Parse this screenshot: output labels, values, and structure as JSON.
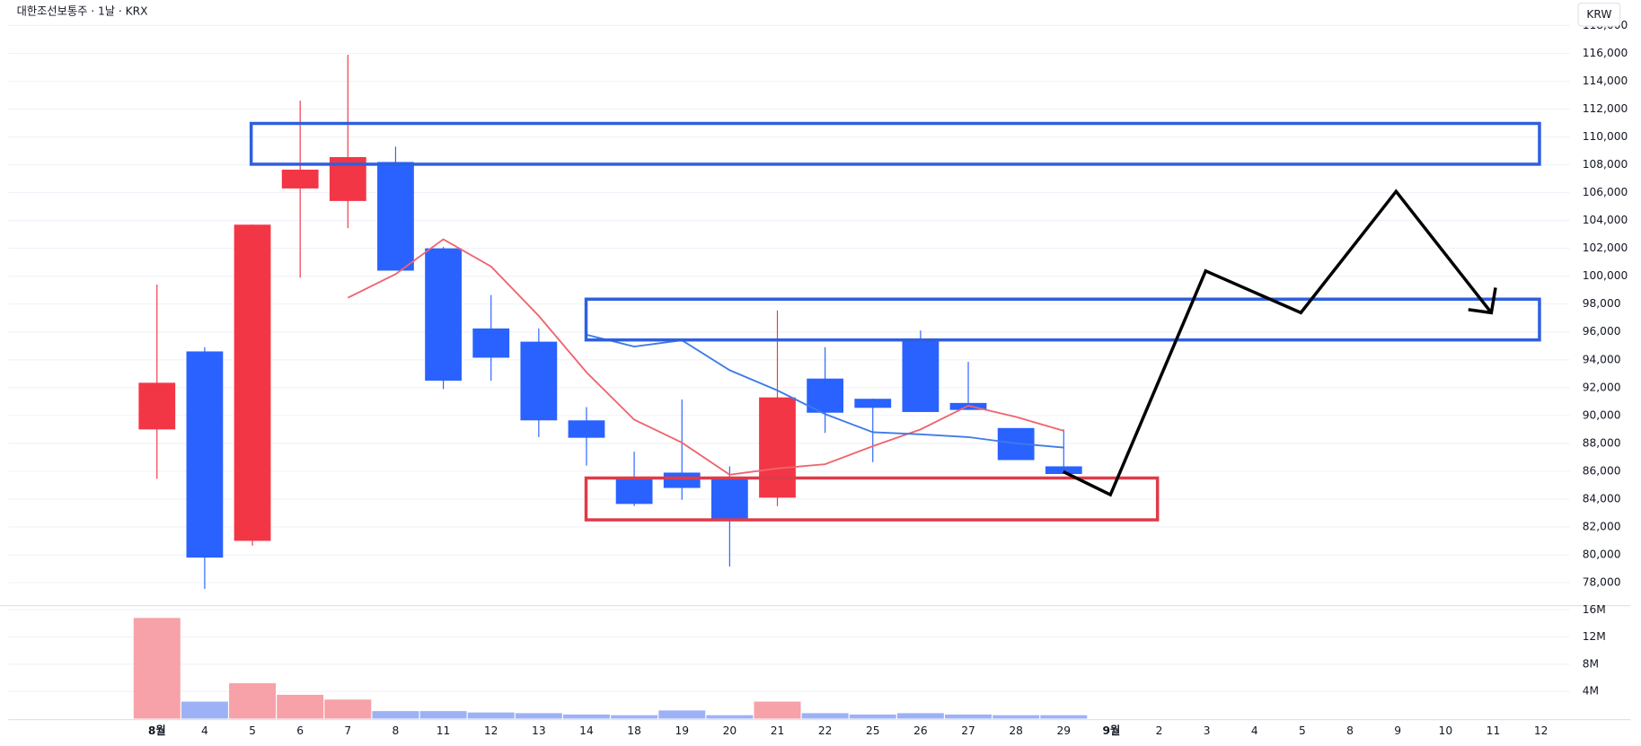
{
  "chart_data": {
    "type": "candlestick",
    "title": "대한조선보통주 · 1날 · KRX",
    "currency": "KRW",
    "categories": [
      "8월",
      "4",
      "5",
      "6",
      "7",
      "8",
      "11",
      "12",
      "13",
      "14",
      "18",
      "19",
      "20",
      "21",
      "22",
      "25",
      "26",
      "27",
      "28",
      "29",
      "9월",
      "2",
      "3",
      "4",
      "5",
      "8",
      "9",
      "10",
      "11",
      "12"
    ],
    "open": [
      89000,
      94600,
      81000,
      106300,
      105400,
      108200,
      102000,
      96250,
      95300,
      89650,
      85500,
      85900,
      85500,
      84100,
      92650,
      91200,
      95450,
      90900,
      89100,
      86350,
      null,
      null,
      null,
      null,
      null,
      null,
      null,
      null,
      null,
      null
    ],
    "high": [
      99400,
      94900,
      103700,
      112600,
      115900,
      109300,
      102100,
      98650,
      96250,
      90600,
      87400,
      91150,
      86350,
      97550,
      94900,
      91200,
      96100,
      93850,
      89100,
      89000,
      null,
      null,
      null,
      null,
      null,
      null,
      null,
      null,
      null,
      null
    ],
    "low": [
      85450,
      77550,
      80650,
      99900,
      103450,
      100400,
      91900,
      92500,
      88450,
      86400,
      83500,
      83950,
      79150,
      83500,
      88750,
      86650,
      90250,
      90400,
      86800,
      85800,
      null,
      null,
      null,
      null,
      null,
      null,
      null,
      null,
      null,
      null
    ],
    "close": [
      92350,
      79800,
      103700,
      107650,
      108550,
      100400,
      92500,
      94150,
      89650,
      88400,
      83650,
      84800,
      82450,
      91300,
      90200,
      90550,
      90250,
      90400,
      86800,
      85800,
      null,
      null,
      null,
      null,
      null,
      null,
      null,
      null,
      null,
      null
    ],
    "volume": [
      14800000,
      2500000,
      5200000,
      3500000,
      2800000,
      1100000,
      1100000,
      900000,
      800000,
      600000,
      500000,
      1200000,
      500000,
      2500000,
      800000,
      600000,
      800000,
      600000,
      500000,
      500000,
      null,
      null,
      null,
      null,
      null,
      null,
      null,
      null,
      null,
      null
    ],
    "up_color": "#f23645",
    "down_color": "#2962ff",
    "volume_up_color": "#f7a1a8",
    "volume_down_color": "#9db2f6",
    "lines": [
      {
        "color": "#f0646e",
        "values": [
          null,
          null,
          null,
          null,
          98450,
          100150,
          102650,
          100700,
          97150,
          93100,
          89700,
          88050,
          85750,
          86200,
          86500,
          87800,
          89000,
          90700,
          89900,
          88900,
          null,
          null,
          null,
          null,
          null,
          null,
          null,
          null,
          null,
          null
        ]
      },
      {
        "color": "#3f7be8",
        "values": [
          null,
          null,
          null,
          null,
          null,
          null,
          null,
          null,
          null,
          95800,
          94950,
          95400,
          93250,
          91800,
          90100,
          88800,
          88650,
          88450,
          88000,
          87700,
          null,
          null,
          null,
          null,
          null,
          null,
          null,
          null,
          null,
          null
        ]
      }
    ],
    "ylim": [
      76500,
      118200
    ],
    "yticks": [
      {
        "value": 78000,
        "label": "78,000"
      },
      {
        "value": 80000,
        "label": "80,000"
      },
      {
        "value": 82000,
        "label": "82,000"
      },
      {
        "value": 84000,
        "label": "84,000"
      },
      {
        "value": 86000,
        "label": "86,000"
      },
      {
        "value": 88000,
        "label": "88,000"
      },
      {
        "value": 90000,
        "label": "90,000"
      },
      {
        "value": 92000,
        "label": "92,000"
      },
      {
        "value": 94000,
        "label": "94,000"
      },
      {
        "value": 96000,
        "label": "96,000"
      },
      {
        "value": 98000,
        "label": "98,000"
      },
      {
        "value": 100000,
        "label": "100,000"
      },
      {
        "value": 102000,
        "label": "102,000"
      },
      {
        "value": 104000,
        "label": "104,000"
      },
      {
        "value": 106000,
        "label": "106,000"
      },
      {
        "value": 108000,
        "label": "108,000"
      },
      {
        "value": 110000,
        "label": "110,000"
      },
      {
        "value": 112000,
        "label": "112,000"
      },
      {
        "value": 114000,
        "label": "114,000"
      },
      {
        "value": 116000,
        "label": "116,000"
      },
      {
        "value": 118000,
        "label": "118,000"
      }
    ],
    "volume_ylim": [
      0,
      16500000
    ],
    "volume_ticks": [
      {
        "value": 4000000,
        "label": "4M"
      },
      {
        "value": 8000000,
        "label": "8M"
      },
      {
        "value": 12000000,
        "label": "12M"
      },
      {
        "value": 16000000,
        "label": "16M"
      }
    ],
    "grid": true
  }
}
